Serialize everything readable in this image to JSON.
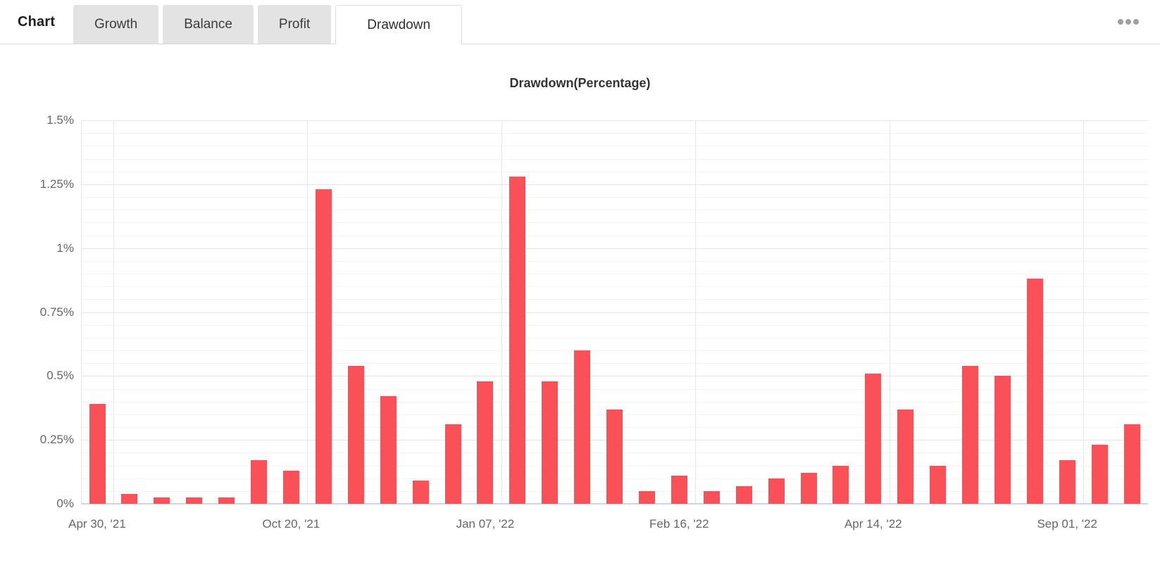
{
  "header": {
    "section_label": "Chart",
    "tabs": [
      {
        "label": "Growth",
        "selected": false
      },
      {
        "label": "Balance",
        "selected": false
      },
      {
        "label": "Profit",
        "selected": false
      },
      {
        "label": "Drawdown",
        "selected": true
      }
    ],
    "menu_icon": "ellipsis-icon"
  },
  "chart_data": {
    "type": "bar",
    "title": "Drawdown(Percentage)",
    "xlabel": "",
    "ylabel": "",
    "ylim": [
      0,
      1.5
    ],
    "y_ticks": [
      "0%",
      "0.25%",
      "0.5%",
      "0.75%",
      "1%",
      "1.25%",
      "1.5%"
    ],
    "y_tick_values": [
      0,
      0.25,
      0.5,
      0.75,
      1,
      1.25,
      1.5
    ],
    "minor_grid_step": 0.05,
    "grid": true,
    "legend": false,
    "bar_color": "#fa5159",
    "values": [
      0.39,
      0.04,
      0.025,
      0.025,
      0.025,
      0.17,
      0.13,
      1.23,
      0.54,
      0.42,
      0.09,
      0.31,
      0.48,
      1.28,
      0.48,
      0.6,
      0.37,
      0.05,
      0.11,
      0.05,
      0.07,
      0.1,
      0.12,
      0.15,
      0.51,
      0.37,
      0.15,
      0.54,
      0.5,
      0.88,
      0.17,
      0.23,
      0.31
    ],
    "x_tick_labels": [
      {
        "index": 0,
        "label": "Apr 30, '21"
      },
      {
        "index": 6,
        "label": "Oct 20, '21"
      },
      {
        "index": 12,
        "label": "Jan 07, '22"
      },
      {
        "index": 18,
        "label": "Feb 16, '22"
      },
      {
        "index": 24,
        "label": "Apr 14, '22"
      },
      {
        "index": 30,
        "label": "Sep 01, '22"
      }
    ]
  },
  "colors": {
    "bar": "#fa5159",
    "axis_line": "#ccd6eb",
    "major_grid": "#e6e6e6",
    "minor_grid": "#f4f4f4",
    "axis_label": "#666666",
    "tab_background": "#e3e3e3",
    "header_border": "#d9d9d9",
    "title_text": "#333333"
  }
}
